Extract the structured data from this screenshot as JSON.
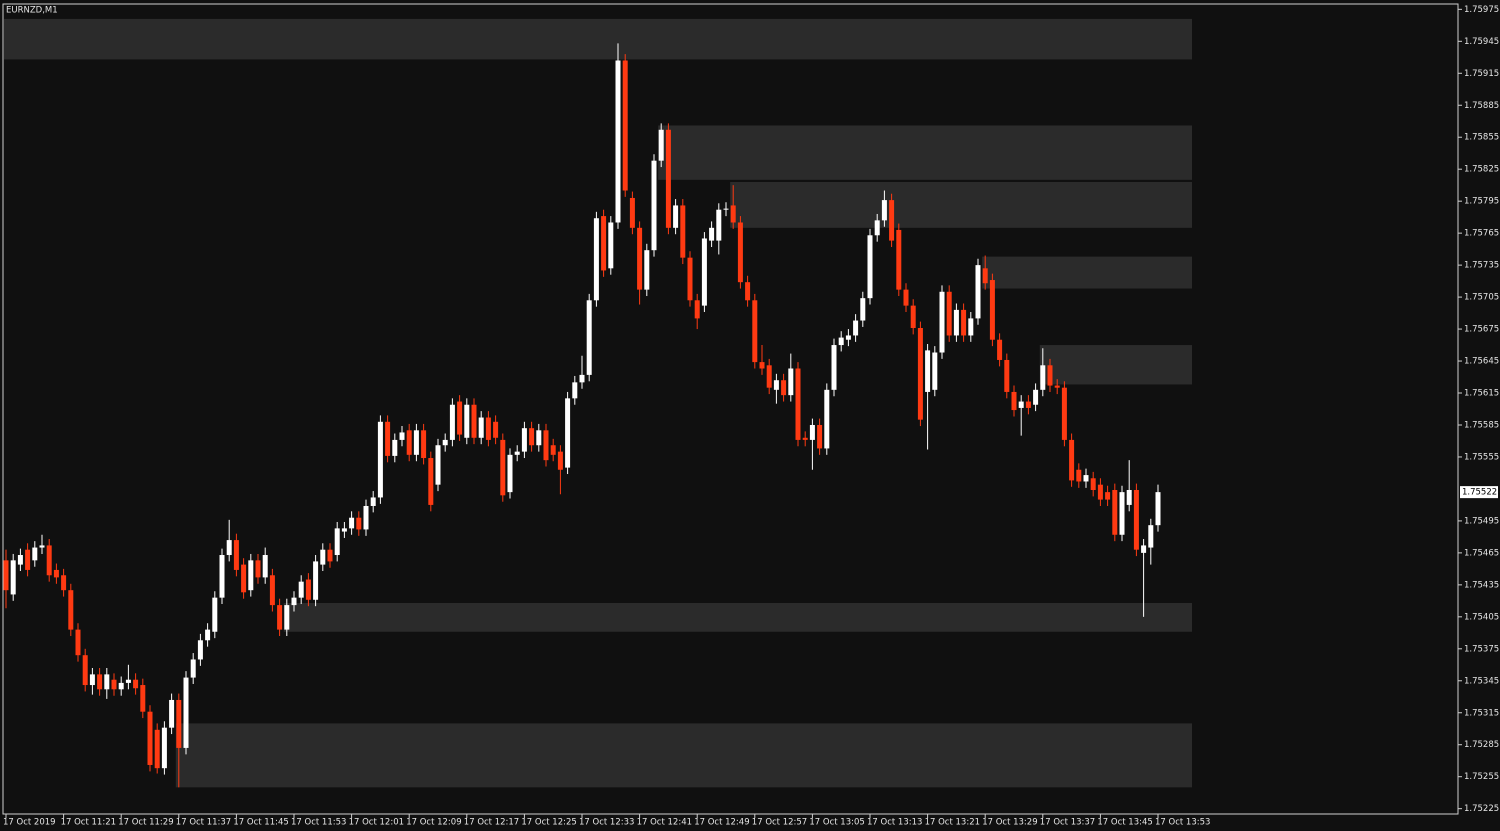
{
  "chart_data": {
    "type": "candlestick",
    "title": "EURNZD,M1",
    "categories": [
      "17 Oct 2019",
      null,
      null,
      null,
      null,
      null,
      null,
      null,
      "17 Oct 11:21",
      null,
      null,
      null,
      null,
      null,
      null,
      null,
      "17 Oct 11:29",
      null,
      null,
      null,
      null,
      null,
      null,
      null,
      "17 Oct 11:37",
      null,
      null,
      null,
      null,
      null,
      null,
      null,
      "17 Oct 11:45",
      null,
      null,
      null,
      null,
      null,
      null,
      null,
      "17 Oct 11:53",
      null,
      null,
      null,
      null,
      null,
      null,
      null,
      "17 Oct 12:01",
      null,
      null,
      null,
      null,
      null,
      null,
      null,
      "17 Oct 12:09",
      null,
      null,
      null,
      null,
      null,
      null,
      null,
      "17 Oct 12:17",
      null,
      null,
      null,
      null,
      null,
      null,
      null,
      "17 Oct 12:25",
      null,
      null,
      null,
      null,
      null,
      null,
      null,
      "17 Oct 12:33",
      null,
      null,
      null,
      null,
      null,
      null,
      null,
      "17 Oct 12:41",
      null,
      null,
      null,
      null,
      null,
      null,
      null,
      "17 Oct 12:49",
      null,
      null,
      null,
      null,
      null,
      null,
      null,
      "17 Oct 12:57",
      null,
      null,
      null,
      null,
      null,
      null,
      null,
      "17 Oct 13:05",
      null,
      null,
      null,
      null,
      null,
      null,
      null,
      "17 Oct 13:13",
      null,
      null,
      null,
      null,
      null,
      null,
      null,
      "17 Oct 13:21",
      null,
      null,
      null,
      null,
      null,
      null,
      null,
      "17 Oct 13:29",
      null,
      null,
      null,
      null,
      null,
      null,
      null,
      "17 Oct 13:37",
      null,
      null,
      null,
      null,
      null,
      null,
      null,
      "17 Oct 13:45",
      null,
      null,
      null,
      null,
      null,
      null,
      null,
      "17 Oct 13:53"
    ],
    "open": [
      1.75458,
      1.75426,
      1.75454,
      1.75468,
      1.75458,
      1.7547,
      1.75472,
      1.75449,
      1.75444,
      1.7543,
      1.75393,
      1.75369,
      1.75341,
      1.75351,
      1.75337,
      1.75346,
      1.75337,
      1.75343,
      1.75346,
      1.75341,
      1.75316,
      1.75299,
      1.75263,
      1.75301,
      1.75327,
      1.75282,
      1.75348,
      1.75365,
      1.75383,
      1.75391,
      1.75423,
      1.75463,
      1.75477,
      1.75454,
      1.7543,
      1.75458,
      1.75442,
      1.75444,
      1.75416,
      1.75393,
      1.75416,
      1.75423,
      1.7544,
      1.75421,
      1.75454,
      1.75468,
      1.75463,
      1.75485,
      1.75488,
      1.75498,
      1.75487,
      1.75509,
      1.75517,
      1.75588,
      1.75556,
      1.75571,
      1.7558,
      1.75557,
      1.7558,
      1.75554,
      1.75529,
      1.75566,
      1.75571,
      1.75607,
      1.75573,
      1.75604,
      1.75573,
      1.75592,
      1.75588,
      1.75571,
      1.75522,
      1.75557,
      1.7556,
      1.75582,
      1.75566,
      1.7558,
      1.75566,
      1.7556,
      1.75545,
      1.7561,
      1.75625,
      1.75632,
      1.75702,
      1.75781,
      1.75732,
      1.75775,
      1.75927,
      1.75798,
      1.7577,
      1.75712,
      1.75749,
      1.75833,
      1.75862,
      1.7577,
      1.75791,
      1.75742,
      1.75702,
      1.75697,
      1.75758,
      1.75758,
      1.75787,
      1.75791,
      1.75775,
      1.75719,
      1.75702,
      1.75644,
      1.75641,
      1.75618,
      1.75627,
      1.75613,
      1.75638,
      1.75573,
      1.75571,
      1.75585,
      1.75563,
      1.75618,
      1.7566,
      1.75665,
      1.75669,
      1.75683,
      1.75704,
      1.75763,
      1.75777,
      1.75796,
      1.75768,
      1.75712,
      1.75697,
      1.75676,
      1.75616,
      1.75618,
      1.75653,
      1.7571,
      1.75669,
      1.75693,
      1.75669,
      1.75685,
      1.75732,
      1.75721,
      1.75665,
      1.75646,
      1.75616,
      1.75601,
      1.75607,
      1.75604,
      1.75618,
      1.75641,
      1.75622,
      1.7562,
      1.75571,
      1.75543,
      1.75532,
      1.75535,
      1.75529,
      1.75522,
      1.75524,
      1.75482,
      1.7551,
      1.75524,
      1.75465,
      1.7547,
      1.75491
    ],
    "high": [
      1.75468,
      1.75464,
      1.75469,
      1.75474,
      1.75476,
      1.75482,
      1.75478,
      1.75455,
      1.7545,
      1.75436,
      1.75399,
      1.75375,
      1.75357,
      1.75357,
      1.75357,
      1.75352,
      1.75349,
      1.7536,
      1.75352,
      1.75347,
      1.75322,
      1.75305,
      1.75307,
      1.75333,
      1.75333,
      1.75354,
      1.75371,
      1.75389,
      1.75399,
      1.75429,
      1.75469,
      1.75496,
      1.75483,
      1.7546,
      1.75464,
      1.75464,
      1.7547,
      1.7545,
      1.75422,
      1.75422,
      1.75429,
      1.75444,
      1.75446,
      1.75463,
      1.75474,
      1.75474,
      1.75494,
      1.75494,
      1.75504,
      1.75504,
      1.75515,
      1.75523,
      1.75594,
      1.75594,
      1.75577,
      1.75584,
      1.75586,
      1.75586,
      1.75586,
      1.7556,
      1.75572,
      1.75577,
      1.7561,
      1.75613,
      1.7561,
      1.7561,
      1.75598,
      1.75598,
      1.75594,
      1.75577,
      1.75563,
      1.75566,
      1.75588,
      1.75588,
      1.75586,
      1.75586,
      1.75572,
      1.75566,
      1.75616,
      1.75631,
      1.7565,
      1.75708,
      1.75785,
      1.75787,
      1.75781,
      1.75943,
      1.75933,
      1.75804,
      1.75776,
      1.75755,
      1.75839,
      1.75868,
      1.75868,
      1.75797,
      1.75797,
      1.75748,
      1.75708,
      1.75766,
      1.75776,
      1.75793,
      1.75794,
      1.7581,
      1.75781,
      1.75725,
      1.75708,
      1.7566,
      1.75647,
      1.75633,
      1.75633,
      1.75652,
      1.75644,
      1.75579,
      1.75591,
      1.75591,
      1.75624,
      1.75666,
      1.75673,
      1.75675,
      1.75689,
      1.7571,
      1.75769,
      1.75783,
      1.75805,
      1.75802,
      1.75774,
      1.75718,
      1.75703,
      1.75682,
      1.75661,
      1.75659,
      1.75716,
      1.75716,
      1.75699,
      1.75699,
      1.75691,
      1.75741,
      1.75744,
      1.75727,
      1.75671,
      1.75652,
      1.75622,
      1.75613,
      1.75613,
      1.75624,
      1.75657,
      1.75647,
      1.75628,
      1.75626,
      1.75577,
      1.75549,
      1.75544,
      1.75541,
      1.75535,
      1.75528,
      1.7553,
      1.75528,
      1.75552,
      1.7553,
      1.75478,
      1.75497,
      1.75529
    ],
    "low": [
      1.75413,
      1.7542,
      1.75448,
      1.75443,
      1.75452,
      1.75464,
      1.75438,
      1.75436,
      1.75424,
      1.75387,
      1.75363,
      1.75335,
      1.75332,
      1.75331,
      1.75328,
      1.75331,
      1.75331,
      1.75337,
      1.75332,
      1.7531,
      1.7526,
      1.75258,
      1.75257,
      1.75295,
      1.75245,
      1.75276,
      1.75342,
      1.75359,
      1.75377,
      1.75385,
      1.75417,
      1.75457,
      1.75443,
      1.75422,
      1.75424,
      1.75436,
      1.75436,
      1.7541,
      1.75387,
      1.75387,
      1.7541,
      1.75417,
      1.75415,
      1.75415,
      1.75448,
      1.75451,
      1.75457,
      1.75479,
      1.75482,
      1.75481,
      1.75481,
      1.75503,
      1.75511,
      1.7555,
      1.7555,
      1.75565,
      1.75551,
      1.75551,
      1.75548,
      1.75504,
      1.75523,
      1.7556,
      1.75565,
      1.7557,
      1.75567,
      1.75567,
      1.75567,
      1.75565,
      1.75567,
      1.75513,
      1.75516,
      1.75551,
      1.75554,
      1.7556,
      1.7556,
      1.75546,
      1.75551,
      1.7552,
      1.75539,
      1.75604,
      1.75619,
      1.75626,
      1.75696,
      1.75724,
      1.75726,
      1.75769,
      1.75799,
      1.75764,
      1.75698,
      1.75706,
      1.75743,
      1.75827,
      1.75764,
      1.75764,
      1.75736,
      1.75696,
      1.75675,
      1.75691,
      1.75752,
      1.75745,
      1.75781,
      1.75769,
      1.75713,
      1.75696,
      1.75638,
      1.75632,
      1.75614,
      1.75605,
      1.75607,
      1.75607,
      1.75565,
      1.75565,
      1.75543,
      1.75557,
      1.75557,
      1.75612,
      1.75654,
      1.75659,
      1.75663,
      1.75677,
      1.75698,
      1.75757,
      1.75771,
      1.75752,
      1.75706,
      1.75691,
      1.7567,
      1.75584,
      1.75562,
      1.75612,
      1.75647,
      1.75663,
      1.75663,
      1.75663,
      1.75663,
      1.75679,
      1.75712,
      1.75659,
      1.7564,
      1.7561,
      1.75593,
      1.75575,
      1.75595,
      1.75598,
      1.75612,
      1.75616,
      1.75614,
      1.75565,
      1.75527,
      1.75526,
      1.75526,
      1.75518,
      1.75509,
      1.75509,
      1.75476,
      1.75476,
      1.75504,
      1.75462,
      1.75405,
      1.75454,
      1.75485
    ],
    "close": [
      1.7543,
      1.75458,
      1.75463,
      1.75449,
      1.7547,
      1.75472,
      1.75444,
      1.75442,
      1.7543,
      1.75393,
      1.75369,
      1.75341,
      1.75351,
      1.75337,
      1.75351,
      1.75337,
      1.75343,
      1.75346,
      1.75338,
      1.75316,
      1.75266,
      1.75263,
      1.75301,
      1.75327,
      1.75282,
      1.75348,
      1.75365,
      1.75383,
      1.75393,
      1.75423,
      1.75463,
      1.75477,
      1.75449,
      1.75428,
      1.75458,
      1.75442,
      1.75463,
      1.75416,
      1.75393,
      1.75416,
      1.75423,
      1.75438,
      1.75421,
      1.75457,
      1.75468,
      1.75457,
      1.75488,
      1.75488,
      1.75498,
      1.75487,
      1.75509,
      1.75517,
      1.75588,
      1.75556,
      1.75571,
      1.75578,
      1.75557,
      1.7558,
      1.75554,
      1.7551,
      1.75566,
      1.75571,
      1.75604,
      1.75576,
      1.75604,
      1.75573,
      1.75592,
      1.75571,
      1.75573,
      1.75519,
      1.75557,
      1.7556,
      1.75582,
      1.75566,
      1.7558,
      1.75552,
      1.75557,
      1.75543,
      1.7561,
      1.75625,
      1.75632,
      1.75702,
      1.75779,
      1.7573,
      1.75775,
      1.75927,
      1.75805,
      1.7577,
      1.75712,
      1.75749,
      1.75833,
      1.75862,
      1.7577,
      1.75791,
      1.75742,
      1.75702,
      1.75685,
      1.7576,
      1.7577,
      1.75787,
      1.75788,
      1.75775,
      1.75719,
      1.75702,
      1.75644,
      1.75638,
      1.7562,
      1.75627,
      1.75613,
      1.75638,
      1.75571,
      1.75571,
      1.75585,
      1.75563,
      1.75618,
      1.7566,
      1.75667,
      1.75669,
      1.75683,
      1.75704,
      1.75763,
      1.75777,
      1.75796,
      1.75758,
      1.75712,
      1.75697,
      1.75676,
      1.7559,
      1.75655,
      1.75653,
      1.7571,
      1.75669,
      1.75693,
      1.75669,
      1.75685,
      1.75735,
      1.75718,
      1.75665,
      1.75646,
      1.75616,
      1.75599,
      1.75607,
      1.75601,
      1.75618,
      1.75641,
      1.75622,
      1.7562,
      1.75571,
      1.75533,
      1.75532,
      1.75538,
      1.75524,
      1.75515,
      1.75515,
      1.75482,
      1.75522,
      1.75524,
      1.75468,
      1.75472,
      1.75491,
      1.75522
    ],
    "up_color": "#ffffff",
    "down_color": "#ff3a12",
    "zone_color": "#2b2b2b",
    "zones": [
      {
        "low": 1.75928,
        "high": 1.75966,
        "from_candle": 0
      },
      {
        "low": 1.75815,
        "high": 1.75866,
        "from_candle": 91
      },
      {
        "low": 1.7577,
        "high": 1.75813,
        "from_candle": 101
      },
      {
        "low": 1.75713,
        "high": 1.75743,
        "from_candle": 136
      },
      {
        "low": 1.75623,
        "high": 1.7566,
        "from_candle": 144
      },
      {
        "low": 1.75391,
        "high": 1.75418,
        "from_candle": 39
      },
      {
        "low": 1.75245,
        "high": 1.75305,
        "from_candle": 24
      }
    ],
    "current_price": 1.75522,
    "ylim": [
      1.7522,
      1.7598
    ],
    "yticks": [
      1.75975,
      1.75945,
      1.75915,
      1.75885,
      1.75855,
      1.75825,
      1.75795,
      1.75765,
      1.75735,
      1.75705,
      1.75675,
      1.75645,
      1.75615,
      1.75585,
      1.75555,
      1.75495,
      1.75465,
      1.75435,
      1.75405,
      1.75375,
      1.75345,
      1.75315,
      1.75285,
      1.75255,
      1.75225
    ]
  }
}
